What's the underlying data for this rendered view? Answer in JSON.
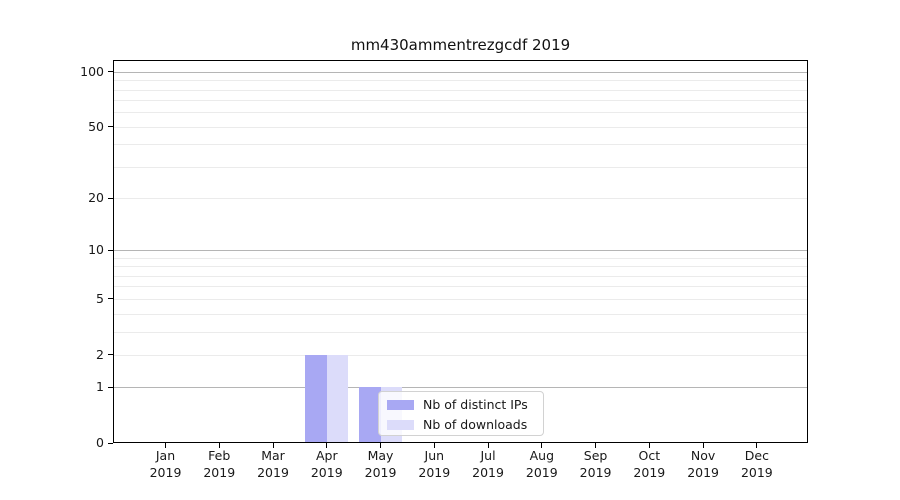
{
  "chart_data": {
    "type": "bar",
    "title": "mm430ammentrezgcdf 2019",
    "categories": [
      "Jan",
      "Feb",
      "Mar",
      "Apr",
      "May",
      "Jun",
      "Jul",
      "Aug",
      "Sep",
      "Oct",
      "Nov",
      "Dec"
    ],
    "x_year_sublabel": "2019",
    "series": [
      {
        "name": "Nb of distinct IPs",
        "color": "#a8a8f3",
        "values": [
          0,
          0,
          0,
          2,
          1,
          0,
          0,
          0,
          0,
          0,
          0,
          0
        ]
      },
      {
        "name": "Nb of downloads",
        "color": "#dcdcfa",
        "values": [
          0,
          0,
          0,
          2,
          1,
          0,
          0,
          0,
          0,
          0,
          0,
          0
        ]
      }
    ],
    "yscale": "log1p",
    "ylim": [
      0,
      116
    ],
    "yticks": [
      0,
      1,
      2,
      5,
      10,
      20,
      50,
      100
    ],
    "grid": {
      "major_ticks": [
        1,
        10,
        100
      ],
      "minor_ticks": [
        2,
        3,
        4,
        5,
        6,
        7,
        8,
        9,
        20,
        30,
        40,
        50,
        60,
        70,
        80,
        90
      ],
      "major_color": "#b5b5b5",
      "minor_color": "#ebebeb"
    },
    "legend": {
      "position": "lower-center-inside"
    },
    "colors": {
      "background": "#ffffff",
      "spine": "#000000",
      "text": "#191919"
    }
  }
}
